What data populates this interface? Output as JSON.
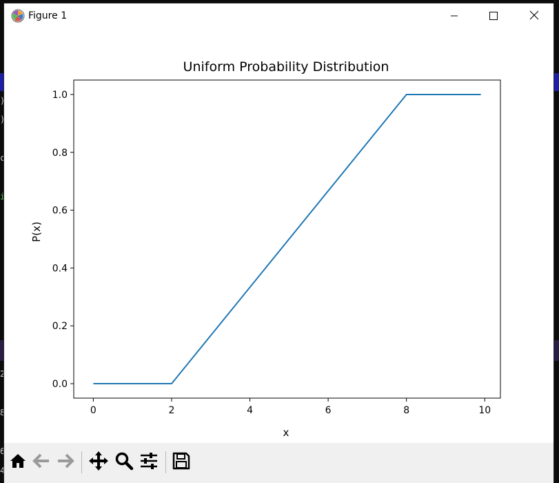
{
  "window": {
    "title": "Figure 1",
    "controls": {
      "minimize": "minimize-icon",
      "maximize": "maximize-icon",
      "close": "close-icon"
    }
  },
  "background_terminal": {
    "lines": [
      ")",
      ")",
      "c",
      "i",
      "2",
      "8",
      "6",
      "4"
    ]
  },
  "toolbar": {
    "tools": [
      {
        "name": "home",
        "icon": "home-icon"
      },
      {
        "name": "back",
        "icon": "back-arrow-icon"
      },
      {
        "name": "forward",
        "icon": "forward-arrow-icon"
      },
      {
        "name": "pan",
        "icon": "move-icon"
      },
      {
        "name": "zoom",
        "icon": "zoom-icon"
      },
      {
        "name": "configure-subplots",
        "icon": "sliders-icon"
      },
      {
        "name": "save",
        "icon": "save-icon"
      }
    ]
  },
  "chart_data": {
    "type": "line",
    "title": "Uniform Probability Distribution",
    "xlabel": "x",
    "ylabel": "P(x)",
    "xlim": [
      -0.5,
      10.4
    ],
    "ylim": [
      -0.05,
      1.05
    ],
    "xticks": [
      0,
      2,
      4,
      6,
      8,
      10
    ],
    "xtick_labels": [
      "0",
      "2",
      "4",
      "6",
      "8",
      "10"
    ],
    "yticks": [
      0.0,
      0.2,
      0.4,
      0.6,
      0.8,
      1.0
    ],
    "ytick_labels": [
      "0.0",
      "0.2",
      "0.4",
      "0.6",
      "0.8",
      "1.0"
    ],
    "grid": false,
    "series": [
      {
        "color": "#1f77b4",
        "x": [
          0,
          2,
          8,
          9.9
        ],
        "y": [
          0,
          0,
          1,
          1
        ]
      }
    ]
  }
}
